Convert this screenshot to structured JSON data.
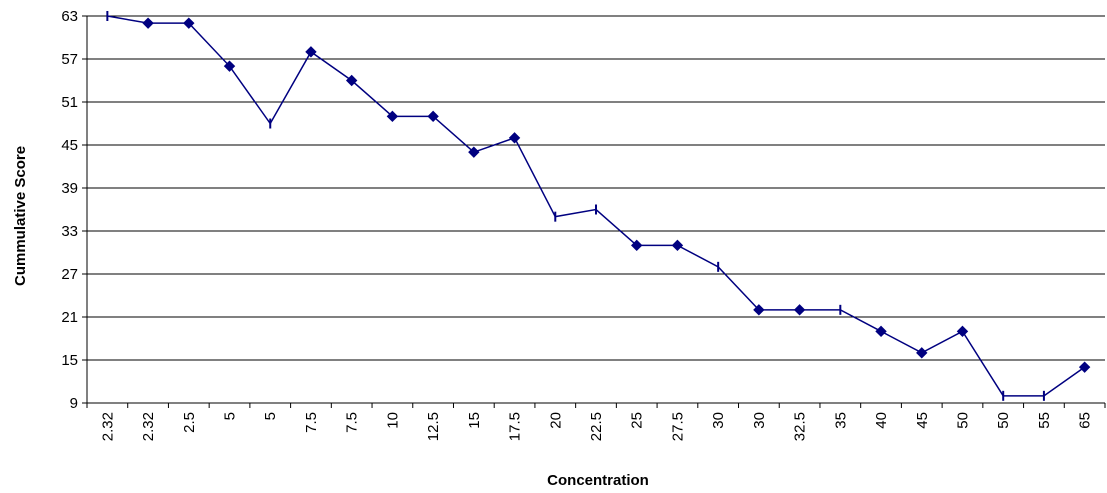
{
  "chart_data": {
    "type": "line",
    "title": "",
    "xlabel": "Concentration",
    "ylabel": "Cummulative Score",
    "categories": [
      "2.32",
      "2.32",
      "2.5",
      "5",
      "5",
      "7.5",
      "7.5",
      "10",
      "12.5",
      "15",
      "17.5",
      "20",
      "22.5",
      "25",
      "27.5",
      "30",
      "30",
      "32.5",
      "35",
      "40",
      "45",
      "50",
      "50",
      "55",
      "65"
    ],
    "series": [
      {
        "values": [
          63,
          62,
          62,
          56,
          48,
          58,
          54,
          49,
          49,
          44,
          46,
          35,
          36,
          31,
          31,
          28,
          22,
          22,
          22,
          19,
          16,
          19,
          10,
          10,
          14
        ],
        "markers": [
          "dash",
          "diamond",
          "diamond",
          "diamond",
          "dash",
          "diamond",
          "diamond",
          "diamond",
          "diamond",
          "diamond",
          "diamond",
          "dash",
          "dash",
          "diamond",
          "diamond",
          "dash",
          "diamond",
          "diamond",
          "dash",
          "diamond",
          "diamond",
          "diamond",
          "dash",
          "dash",
          "diamond"
        ]
      }
    ],
    "yticks": [
      9,
      15,
      21,
      27,
      33,
      39,
      45,
      51,
      57,
      63
    ],
    "ylim": [
      9,
      63
    ],
    "grid": true,
    "legend": "none",
    "colors": {
      "series": "#000080",
      "grid": "#000000",
      "axis": "#000000"
    }
  }
}
